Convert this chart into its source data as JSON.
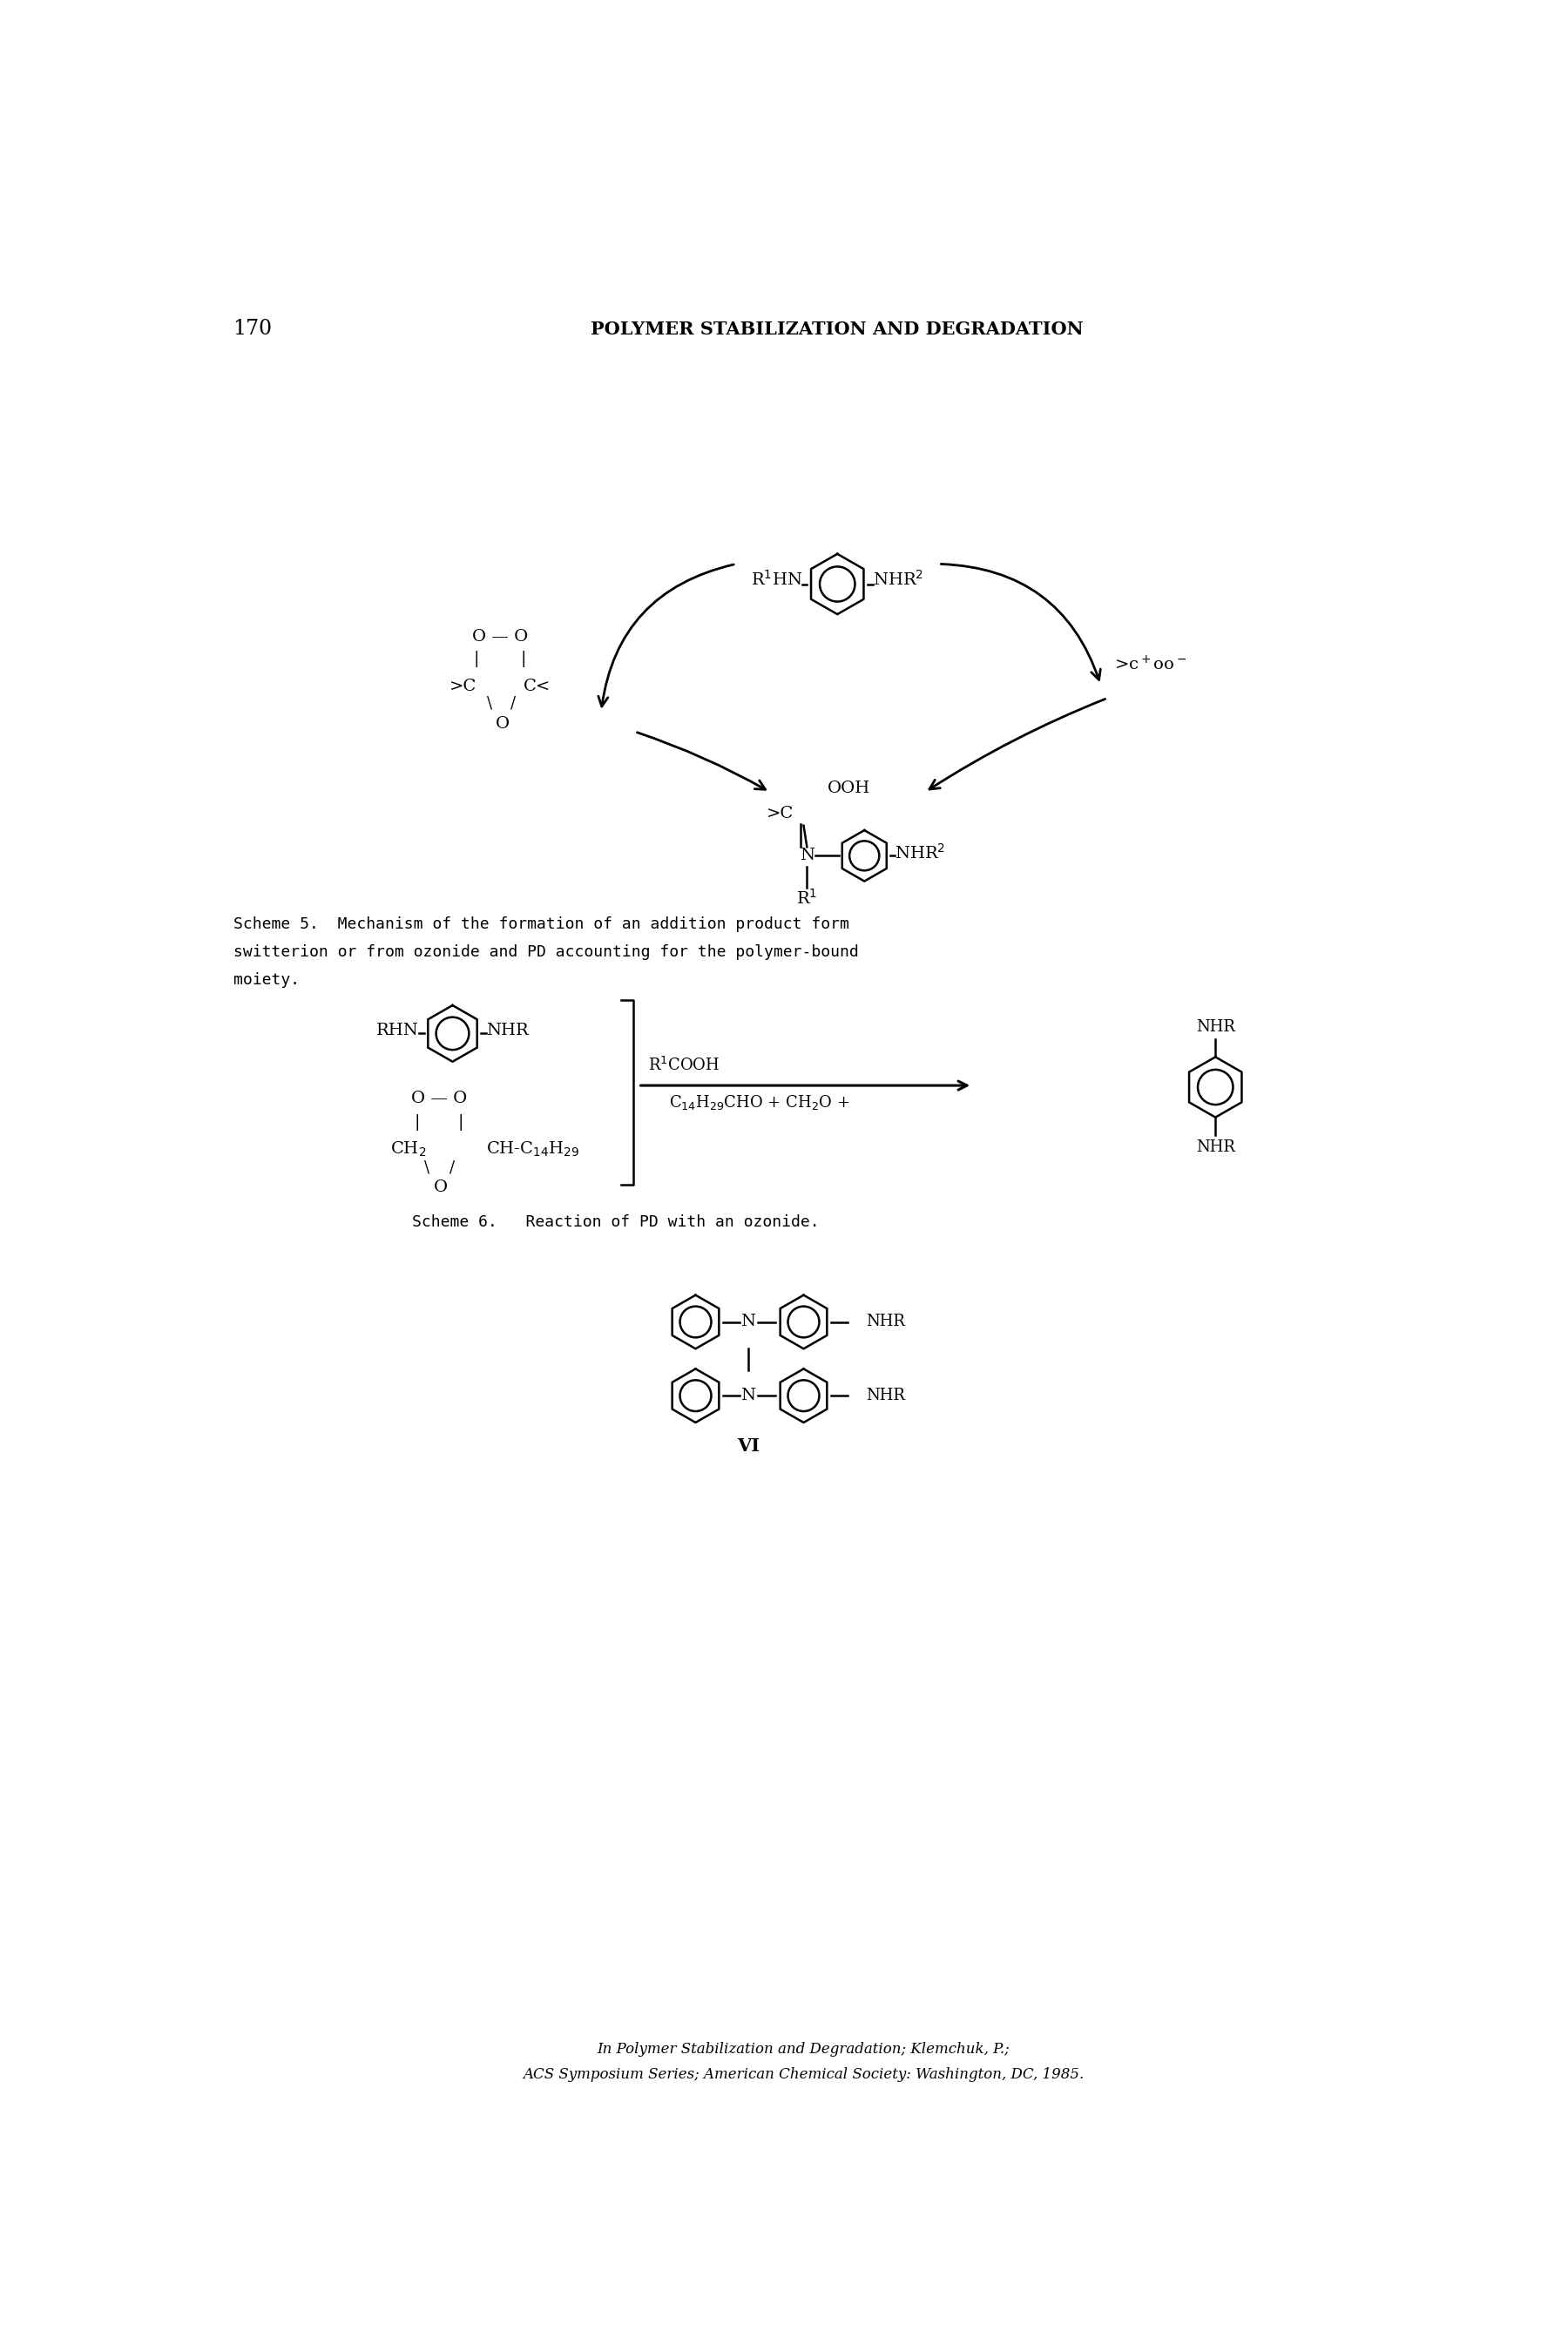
{
  "page_number": "170",
  "header_title": "POLYMER STABILIZATION AND DEGRADATION",
  "scheme5_caption_line1": "Scheme 5.  Mechanism of the formation of an addition product form",
  "scheme5_caption_line2": "switterion or from ozonide and PD accounting for the polymer-bound",
  "scheme5_caption_line3": "moiety.",
  "scheme6_caption": "Scheme 6.   Reaction of PD with an ozonide.",
  "footer_line1": "In Polymer Stabilization and Degradation; Klemchuk, P.;",
  "footer_line2": "ACS Symposium Series; American Chemical Society: Washington, DC, 1985.",
  "bg_color": "#ffffff",
  "text_color": "#000000"
}
